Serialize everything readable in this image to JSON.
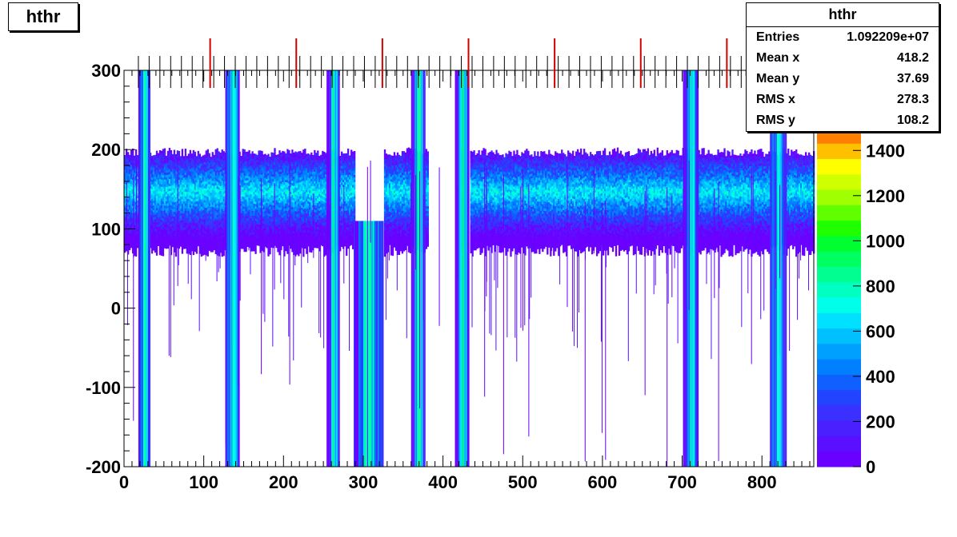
{
  "title": "hthr",
  "stats": {
    "title": "hthr",
    "rows": [
      {
        "label": "Entries",
        "value": "1.092209e+07"
      },
      {
        "label": "Mean x",
        "value": "418.2"
      },
      {
        "label": "Mean y",
        "value": "37.69"
      },
      {
        "label": "RMS x",
        "value": "278.3"
      },
      {
        "label": "RMS y",
        "value": "108.2"
      }
    ]
  },
  "chart_data": {
    "type": "heatmap",
    "title": "hthr",
    "xlabel": "",
    "ylabel": "",
    "xlim": [
      0,
      865
    ],
    "ylim": [
      -200,
      300
    ],
    "xticks": [
      "0",
      "100",
      "200",
      "300",
      "400",
      "500",
      "600",
      "700",
      "800"
    ],
    "yticks": [
      "-200",
      "-100",
      "0",
      "100",
      "200",
      "300"
    ],
    "zticks": [
      "0",
      "200",
      "400",
      "600",
      "800",
      "1000",
      "1200",
      "1400"
    ],
    "zlim": [
      0,
      1500
    ],
    "palette": [
      "#6a00ff",
      "#5a10ff",
      "#4a20ff",
      "#3a30ff",
      "#2244ff",
      "#1060ff",
      "#0080ff",
      "#00a0ff",
      "#00c0ff",
      "#00e0ff",
      "#00ffea",
      "#00ffc0",
      "#00ff90",
      "#00ff60",
      "#00ff30",
      "#20ff00",
      "#60ff00",
      "#a0ff00",
      "#d0ff00",
      "#ffff00",
      "#ffc000",
      "#ff8000"
    ],
    "band": {
      "y_center": 145,
      "y_min": 80,
      "y_max": 190
    },
    "gaps": [
      [
        290,
        325
      ],
      [
        382,
        420
      ],
      [
        428,
        432
      ]
    ],
    "dense_columns": [
      {
        "x": [
          18,
          33
        ],
        "y": [
          -200,
          300
        ]
      },
      {
        "x": [
          127,
          145
        ],
        "y": [
          -200,
          300
        ]
      },
      {
        "x": [
          254,
          270
        ],
        "y": [
          -200,
          300
        ]
      },
      {
        "x": [
          288,
          325
        ],
        "y": [
          -200,
          110
        ]
      },
      {
        "x": [
          360,
          378
        ],
        "y": [
          -200,
          300
        ]
      },
      {
        "x": [
          415,
          433
        ],
        "y": [
          -200,
          300
        ]
      },
      {
        "x": [
          701,
          720
        ],
        "y": [
          -200,
          300
        ]
      },
      {
        "x": [
          810,
          830
        ],
        "y": [
          -200,
          300
        ]
      }
    ],
    "red_markers_x": [
      108,
      216,
      324,
      432,
      540,
      648,
      756,
      864
    ]
  }
}
